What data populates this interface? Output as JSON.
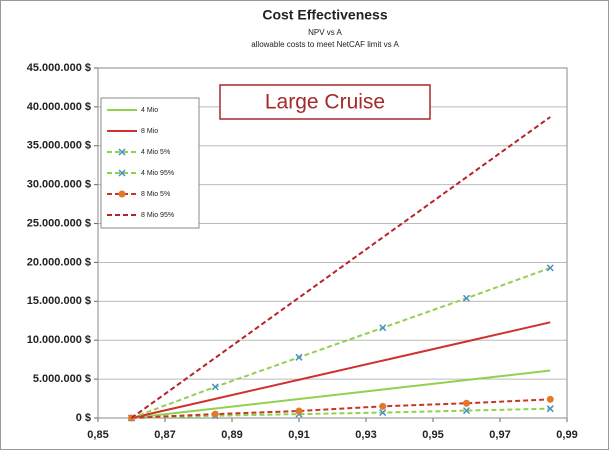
{
  "chart_data": {
    "type": "line",
    "title": "Cost Effectiveness",
    "subtitle": "NPV vs A",
    "subtitle2": "allowable costs to meet NetCAF limit vs A",
    "annotation": "Large Cruise",
    "x": [
      0.86,
      0.885,
      0.91,
      0.935,
      0.96,
      0.985
    ],
    "series": [
      {
        "name": "4 Mio",
        "color": "#92d050",
        "dash": false,
        "marker": "none",
        "values": [
          0,
          1220000,
          2440000,
          3660000,
          4880000,
          6100000
        ]
      },
      {
        "name": "8 Mio",
        "color": "#d0302f",
        "dash": false,
        "marker": "none",
        "values": [
          0,
          2460000,
          4920000,
          7380000,
          9840000,
          12300000
        ]
      },
      {
        "name": "4 Mio 5%",
        "color": "#92d050",
        "dash": true,
        "marker": "x",
        "marker_color": "#4a8fc7",
        "values": [
          0,
          300000,
          500000,
          700000,
          950000,
          1200000
        ]
      },
      {
        "name": "4 Mio 95%",
        "color": "#92d050",
        "dash": true,
        "marker": "x",
        "marker_color": "#4a8fc7",
        "values": [
          0,
          4000000,
          7800000,
          11600000,
          15400000,
          19300000
        ]
      },
      {
        "name": "8 Mio 5%",
        "color": "#c0392b",
        "dash": true,
        "marker": "circle",
        "marker_color": "#e07a2a",
        "values": [
          0,
          500000,
          900000,
          1500000,
          1900000,
          2400000
        ]
      },
      {
        "name": "8 Mio 95%",
        "color": "#b8232b",
        "dash": true,
        "marker": "none",
        "values": [
          0,
          7740000,
          15480000,
          23220000,
          30960000,
          38700000
        ]
      }
    ],
    "xlim": [
      0.85,
      0.99
    ],
    "xticks": [
      {
        "value": 0.85,
        "label": "0,85"
      },
      {
        "value": 0.87,
        "label": "0,87"
      },
      {
        "value": 0.89,
        "label": "0,89"
      },
      {
        "value": 0.91,
        "label": "0,91"
      },
      {
        "value": 0.93,
        "label": "0,93"
      },
      {
        "value": 0.95,
        "label": "0,95"
      },
      {
        "value": 0.97,
        "label": "0,97"
      },
      {
        "value": 0.99,
        "label": "0,99"
      }
    ],
    "ylim": [
      0,
      45000000
    ],
    "yticks": [
      {
        "value": 0,
        "label": "0 $"
      },
      {
        "value": 5000000,
        "label": "5.000.000 $"
      },
      {
        "value": 10000000,
        "label": "10.000.000 $"
      },
      {
        "value": 15000000,
        "label": "15.000.000 $"
      },
      {
        "value": 20000000,
        "label": "20.000.000 $"
      },
      {
        "value": 25000000,
        "label": "25.000.000 $"
      },
      {
        "value": 30000000,
        "label": "30.000.000 $"
      },
      {
        "value": 35000000,
        "label": "35.000.000 $"
      },
      {
        "value": 40000000,
        "label": "40.000.000 $"
      },
      {
        "value": 45000000,
        "label": "45.000.000 $"
      }
    ],
    "grid": true,
    "legend": "upper left"
  }
}
